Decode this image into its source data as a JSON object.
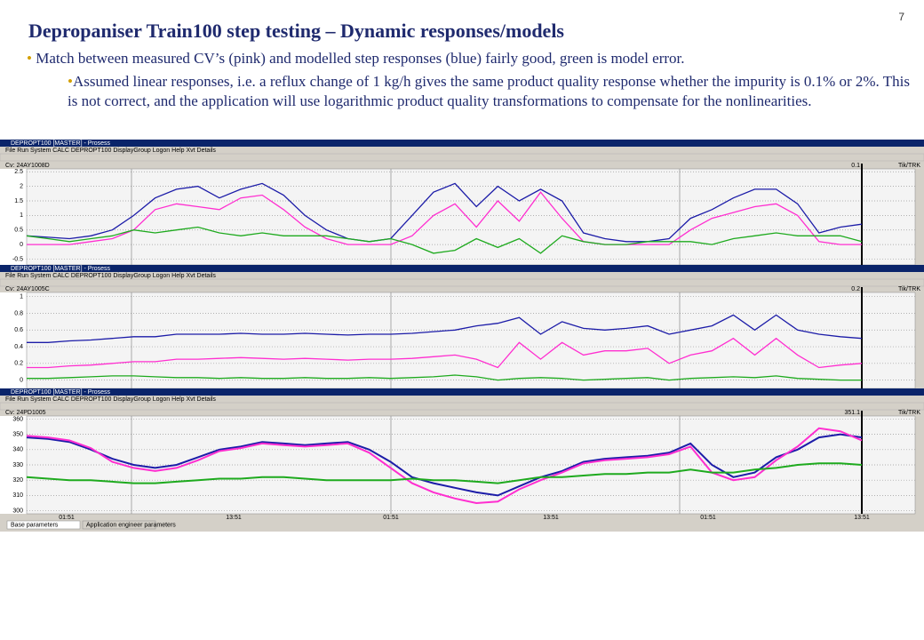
{
  "header": {
    "title": "Depropaniser Train100 step testing – Dynamic responses/models",
    "page_number": "7"
  },
  "bullets": [
    "Match between measured CV’s (pink) and modelled step responses (blue) fairly good, green is model error.",
    "Assumed linear responses, i.e. a reflux change of 1 kg/h gives the same product quality response whether the impurity is 0.1% or 2%. This is not correct, and the application will use logarithmic product quality transformations to compensate for the nonlinearities."
  ],
  "screenshot": {
    "panels": [
      {
        "window_title": "DEPROPT100 [MASTER] - Prosess",
        "menu": "File  Run  System  CALC  DEPROPT100  DisplayGroup  Logon  Help  Xvt Details",
        "cursor_value": "0.1",
        "mode_label": "Tik/TRK"
      },
      {
        "window_title": "DEPROPT100 [MASTER] - Prosess",
        "menu": "File  Run  System  CALC  DEPROPT100  DisplayGroup  Logon  Help  Xvt Details",
        "cursor_value": "0.2",
        "mode_label": "Tik/TRK"
      },
      {
        "window_title": "DEPROPT100 [MASTER] - Prosess",
        "menu": "File  Run  System  CALC  DEPROPT100  DisplayGroup  Logon  Help  Xvt Details",
        "cursor_value": "351.1",
        "mode_label": "Tik/TRK"
      }
    ],
    "tabs": [
      "Base parameters",
      "Application engineer parameters"
    ]
  },
  "chart_data": [
    {
      "type": "line",
      "title": "Cv: 24AY1008D",
      "ylim": [
        -0.7,
        2.6
      ],
      "yticks": [
        2.5,
        2,
        1.5,
        1,
        0.5,
        0,
        -0.5
      ],
      "grid": true,
      "series": [
        {
          "color": "#1c1ca8",
          "values": [
            0.3,
            0.25,
            0.2,
            0.3,
            0.5,
            1.0,
            1.6,
            1.9,
            2.0,
            1.6,
            1.9,
            2.1,
            1.7,
            1.0,
            0.5,
            0.2,
            0.1,
            0.2,
            1.0,
            1.8,
            2.1,
            1.3,
            2.0,
            1.5,
            1.9,
            1.5,
            0.4,
            0.2,
            0.1,
            0.1,
            0.2,
            0.9,
            1.2,
            1.6,
            1.9,
            1.9,
            1.4,
            0.4,
            0.6,
            0.7
          ]
        },
        {
          "color": "#ff2ed0",
          "values": [
            0,
            0,
            0,
            0.1,
            0.2,
            0.5,
            1.2,
            1.4,
            1.3,
            1.2,
            1.6,
            1.7,
            1.2,
            0.6,
            0.2,
            0,
            0,
            0,
            0.3,
            1.0,
            1.4,
            0.6,
            1.5,
            0.8,
            1.8,
            0.9,
            0.1,
            0,
            0,
            0,
            0,
            0.5,
            0.9,
            1.1,
            1.3,
            1.4,
            1.0,
            0.1,
            0,
            0
          ]
        },
        {
          "color": "#1eaa1e",
          "values": [
            0.3,
            0.2,
            0.1,
            0.2,
            0.3,
            0.5,
            0.4,
            0.5,
            0.6,
            0.4,
            0.3,
            0.4,
            0.3,
            0.3,
            0.3,
            0.2,
            0.1,
            0.2,
            0.0,
            -0.3,
            -0.2,
            0.2,
            -0.1,
            0.2,
            -0.3,
            0.3,
            0.1,
            0.0,
            0.0,
            0.1,
            0.1,
            0.1,
            0.0,
            0.2,
            0.3,
            0.4,
            0.3,
            0.3,
            0.3,
            0.1
          ]
        }
      ]
    },
    {
      "type": "line",
      "title": "Cv: 24AY1005C",
      "ylim": [
        -0.1,
        1.05
      ],
      "yticks": [
        1,
        0.8,
        0.6,
        0.4,
        0.2,
        0
      ],
      "grid": true,
      "series": [
        {
          "color": "#1c1ca8",
          "values": [
            0.45,
            0.45,
            0.47,
            0.48,
            0.5,
            0.52,
            0.52,
            0.55,
            0.55,
            0.55,
            0.56,
            0.55,
            0.55,
            0.56,
            0.55,
            0.54,
            0.55,
            0.55,
            0.56,
            0.58,
            0.6,
            0.65,
            0.68,
            0.75,
            0.55,
            0.7,
            0.62,
            0.6,
            0.62,
            0.65,
            0.55,
            0.6,
            0.65,
            0.78,
            0.6,
            0.78,
            0.6,
            0.55,
            0.52,
            0.5
          ]
        },
        {
          "color": "#ff2ed0",
          "values": [
            0.15,
            0.15,
            0.17,
            0.18,
            0.2,
            0.22,
            0.22,
            0.25,
            0.25,
            0.26,
            0.27,
            0.26,
            0.25,
            0.26,
            0.25,
            0.24,
            0.25,
            0.25,
            0.26,
            0.28,
            0.3,
            0.25,
            0.15,
            0.45,
            0.25,
            0.45,
            0.3,
            0.35,
            0.35,
            0.38,
            0.2,
            0.3,
            0.35,
            0.5,
            0.3,
            0.5,
            0.3,
            0.15,
            0.18,
            0.2
          ]
        },
        {
          "color": "#1eaa1e",
          "values": [
            0.02,
            0.02,
            0.03,
            0.04,
            0.05,
            0.05,
            0.04,
            0.03,
            0.03,
            0.02,
            0.03,
            0.02,
            0.02,
            0.03,
            0.02,
            0.02,
            0.03,
            0.02,
            0.03,
            0.04,
            0.06,
            0.04,
            0.0,
            0.02,
            0.03,
            0.02,
            0.0,
            0.01,
            0.02,
            0.03,
            0.0,
            0.02,
            0.03,
            0.04,
            0.03,
            0.05,
            0.02,
            0.01,
            0.0,
            0.0
          ]
        }
      ]
    },
    {
      "type": "line",
      "title": "Cv: 24PD1005",
      "ylim": [
        298,
        362
      ],
      "yticks": [
        360,
        350,
        340,
        330,
        320,
        310,
        300
      ],
      "grid": true,
      "x_labels": [
        "01:51",
        "13:51",
        "01:51",
        "13:51",
        "01:51",
        "13:51"
      ],
      "series": [
        {
          "color": "#1c1ca8",
          "values": [
            348,
            347,
            345,
            340,
            334,
            330,
            328,
            330,
            335,
            340,
            342,
            345,
            344,
            343,
            344,
            345,
            340,
            332,
            322,
            318,
            315,
            312,
            310,
            316,
            322,
            326,
            332,
            334,
            335,
            336,
            338,
            344,
            330,
            322,
            325,
            335,
            340,
            348,
            350,
            348
          ]
        },
        {
          "color": "#ff2ed0",
          "values": [
            349,
            348,
            346,
            341,
            332,
            328,
            326,
            328,
            333,
            339,
            341,
            344,
            343,
            342,
            343,
            344,
            338,
            328,
            318,
            312,
            308,
            305,
            306,
            314,
            320,
            325,
            331,
            333,
            334,
            335,
            337,
            342,
            325,
            320,
            322,
            333,
            342,
            354,
            352,
            346
          ]
        },
        {
          "color": "#1eaa1e",
          "values": [
            322,
            321,
            320,
            320,
            319,
            318,
            318,
            319,
            320,
            321,
            321,
            322,
            322,
            321,
            320,
            320,
            320,
            320,
            321,
            320,
            320,
            319,
            318,
            320,
            322,
            322,
            323,
            324,
            324,
            325,
            325,
            327,
            325,
            325,
            327,
            328,
            330,
            331,
            331,
            330
          ]
        }
      ]
    }
  ]
}
